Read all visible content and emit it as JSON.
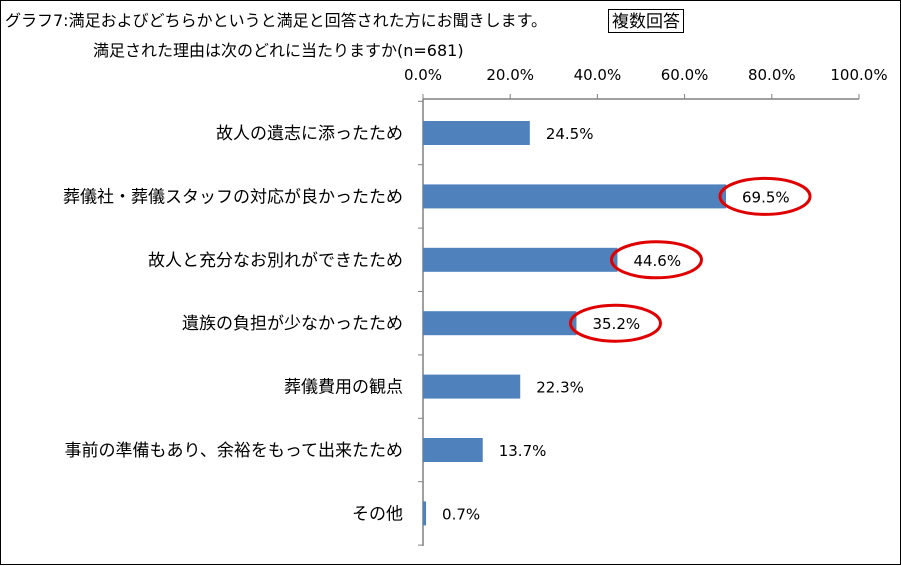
{
  "header": {
    "title_line1": "グラフ7:満足およびどちらかというと満足と回答された方にお聞きします。",
    "title_line2": "満足された理由は次のどれに当たりますか(n=681)",
    "badge": "複数回答"
  },
  "chart_data": {
    "type": "bar",
    "orientation": "horizontal",
    "title": "グラフ7:満足およびどちらかというと満足と回答された方にお聞きします。 満足された理由は次のどれに当たりますか(n=681)",
    "categories": [
      "故人の遺志に添ったため",
      "葬儀社・葬儀スタッフの対応が良かったため",
      "故人と充分なお別れができたため",
      "遺族の負担が少なかったため",
      "葬儀費用の観点",
      "事前の準備もあり、余裕をもって出来たため",
      "その他"
    ],
    "values": [
      24.5,
      69.5,
      44.6,
      35.2,
      22.3,
      13.7,
      0.7
    ],
    "value_labels": [
      "24.5%",
      "69.5%",
      "44.6%",
      "35.2%",
      "22.3%",
      "13.7%",
      "0.7%"
    ],
    "highlighted": [
      false,
      true,
      true,
      true,
      false,
      false,
      false
    ],
    "xlim": [
      0,
      100
    ],
    "x_ticks": [
      "0.0%",
      "20.0%",
      "40.0%",
      "60.0%",
      "80.0%",
      "100.0%"
    ],
    "axis_position": "top",
    "grid": false,
    "legend": "none",
    "colors": {
      "bar": "#4F81BD",
      "highlight_ring": "#E00000",
      "axis": "#808080"
    }
  }
}
